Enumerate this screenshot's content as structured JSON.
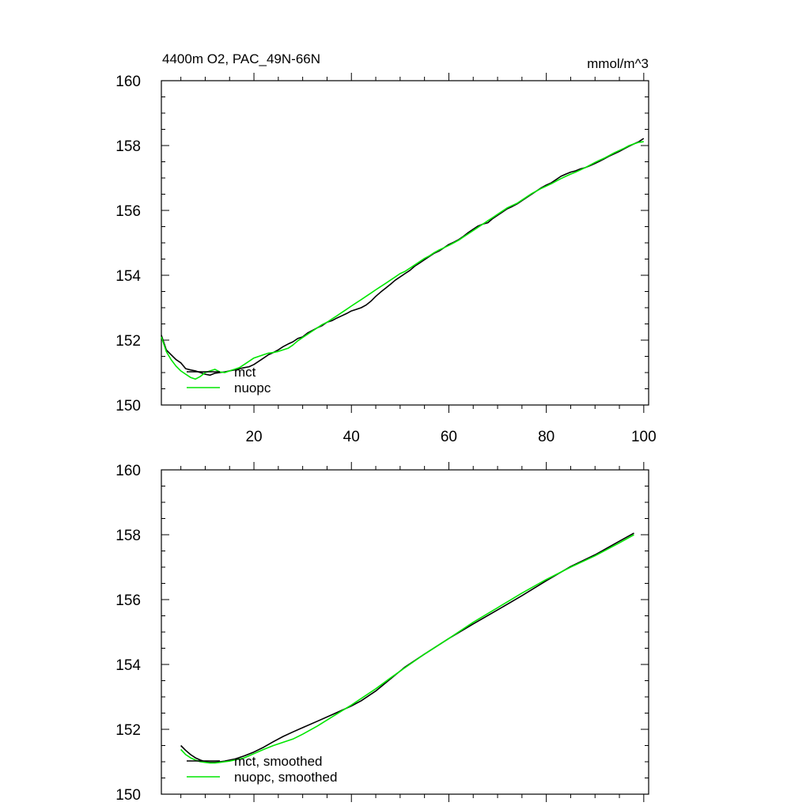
{
  "colors": {
    "mct": "#000000",
    "nuopc": "#00e600"
  },
  "chart_data": [
    {
      "type": "line",
      "title": "4400m O2, PAC_49N-66N",
      "units": "mmol/m^3",
      "xlim": [
        1,
        101
      ],
      "ylim": [
        150,
        160
      ],
      "x_ticks": [
        20,
        40,
        60,
        80,
        100
      ],
      "x_tick_labels": [
        "20",
        "40",
        "60",
        "80",
        "100"
      ],
      "y_ticks": [
        150,
        152,
        154,
        156,
        158,
        160
      ],
      "y_tick_labels": [
        "150",
        "152",
        "154",
        "156",
        "158",
        "160"
      ],
      "legend_position": "bottom-left",
      "x": [
        1,
        2,
        3,
        4,
        5,
        6,
        7,
        8,
        9,
        10,
        11,
        12,
        13,
        14,
        15,
        16,
        17,
        18,
        19,
        20,
        21,
        22,
        23,
        24,
        25,
        26,
        27,
        28,
        29,
        30,
        31,
        32,
        33,
        34,
        35,
        36,
        37,
        38,
        39,
        40,
        41,
        42,
        43,
        44,
        45,
        46,
        47,
        48,
        49,
        50,
        51,
        52,
        53,
        54,
        55,
        56,
        57,
        58,
        59,
        60,
        61,
        62,
        63,
        64,
        65,
        66,
        67,
        68,
        69,
        70,
        71,
        72,
        73,
        74,
        75,
        76,
        77,
        78,
        79,
        80,
        81,
        82,
        83,
        84,
        85,
        86,
        87,
        88,
        89,
        90,
        91,
        92,
        93,
        94,
        95,
        96,
        97,
        98,
        99,
        100
      ],
      "series": [
        {
          "name": "mct",
          "color_key": "mct",
          "values": [
            152.15,
            151.7,
            151.55,
            151.4,
            151.3,
            151.12,
            151.08,
            151.05,
            151.0,
            150.95,
            150.92,
            150.98,
            151.0,
            151.02,
            151.05,
            151.08,
            151.12,
            151.15,
            151.18,
            151.25,
            151.35,
            151.45,
            151.55,
            151.62,
            151.7,
            151.8,
            151.88,
            151.95,
            152.05,
            152.1,
            152.22,
            152.3,
            152.38,
            152.45,
            152.55,
            152.6,
            152.68,
            152.75,
            152.82,
            152.9,
            152.95,
            153.0,
            153.08,
            153.2,
            153.35,
            153.48,
            153.6,
            153.72,
            153.85,
            153.95,
            154.05,
            154.15,
            154.28,
            154.38,
            154.48,
            154.58,
            154.68,
            154.75,
            154.85,
            154.95,
            155.02,
            155.1,
            155.2,
            155.32,
            155.42,
            155.52,
            155.58,
            155.62,
            155.75,
            155.85,
            155.95,
            156.05,
            156.12,
            156.2,
            156.3,
            156.4,
            156.5,
            156.6,
            156.7,
            156.78,
            156.85,
            156.95,
            157.05,
            157.12,
            157.18,
            157.22,
            157.28,
            157.32,
            157.38,
            157.45,
            157.52,
            157.6,
            157.68,
            157.75,
            157.82,
            157.9,
            157.98,
            158.05,
            158.12,
            158.22
          ]
        },
        {
          "name": "nuopc",
          "color_key": "nuopc",
          "values": [
            152.1,
            151.65,
            151.4,
            151.2,
            151.05,
            150.95,
            150.85,
            150.8,
            150.88,
            151.0,
            151.05,
            151.1,
            151.02,
            151.0,
            151.05,
            151.1,
            151.15,
            151.25,
            151.35,
            151.45,
            151.5,
            151.55,
            151.6,
            151.62,
            151.65,
            151.7,
            151.75,
            151.85,
            151.98,
            152.08,
            152.18,
            152.28,
            152.38,
            152.48,
            152.55,
            152.65,
            152.75,
            152.85,
            152.95,
            153.05,
            153.15,
            153.25,
            153.35,
            153.45,
            153.55,
            153.65,
            153.75,
            153.85,
            153.95,
            154.05,
            154.12,
            154.22,
            154.32,
            154.42,
            154.52,
            154.6,
            154.7,
            154.78,
            154.85,
            154.92,
            155.0,
            155.08,
            155.18,
            155.28,
            155.38,
            155.48,
            155.58,
            155.68,
            155.78,
            155.88,
            155.98,
            156.08,
            156.15,
            156.22,
            156.32,
            156.42,
            156.52,
            156.6,
            156.68,
            156.75,
            156.82,
            156.9,
            156.98,
            157.05,
            157.12,
            157.18,
            157.25,
            157.32,
            157.4,
            157.48,
            157.55,
            157.62,
            157.7,
            157.78,
            157.85,
            157.92,
            158.0,
            158.05,
            158.1,
            158.12
          ]
        }
      ]
    },
    {
      "type": "line",
      "xlim": [
        1,
        101
      ],
      "ylim": [
        150,
        160
      ],
      "x_ticks": [
        20,
        40,
        60,
        80,
        100
      ],
      "y_ticks": [
        150,
        152,
        154,
        156,
        158,
        160
      ],
      "y_tick_labels": [
        "150",
        "152",
        "154",
        "156",
        "158",
        "160"
      ],
      "legend_position": "bottom-left",
      "x": [
        5,
        6,
        7,
        8,
        9,
        10,
        11,
        12,
        13,
        14,
        15,
        16,
        18,
        20,
        22,
        24,
        26,
        28,
        30,
        33,
        36,
        40,
        42,
        45,
        48,
        51,
        55,
        60,
        65,
        70,
        75,
        80,
        85,
        90,
        95,
        98
      ],
      "series": [
        {
          "name": "mct, smoothed",
          "color_key": "mct",
          "values": [
            151.5,
            151.35,
            151.22,
            151.12,
            151.05,
            151.0,
            150.98,
            150.98,
            151.0,
            151.02,
            151.05,
            151.08,
            151.18,
            151.3,
            151.45,
            151.62,
            151.78,
            151.92,
            152.05,
            152.25,
            152.45,
            152.72,
            152.88,
            153.18,
            153.55,
            153.92,
            154.32,
            154.8,
            155.25,
            155.68,
            156.12,
            156.58,
            157.02,
            157.38,
            157.8,
            158.05
          ]
        },
        {
          "name": "nuopc, smoothed",
          "color_key": "nuopc",
          "values": [
            151.38,
            151.22,
            151.12,
            151.05,
            151.0,
            150.98,
            150.96,
            150.96,
            150.98,
            151.0,
            151.02,
            151.05,
            151.12,
            151.25,
            151.38,
            151.5,
            151.6,
            151.7,
            151.85,
            152.1,
            152.38,
            152.75,
            152.95,
            153.25,
            153.58,
            153.9,
            154.32,
            154.8,
            155.3,
            155.75,
            156.2,
            156.62,
            157.0,
            157.35,
            157.75,
            158.0
          ]
        }
      ]
    }
  ]
}
